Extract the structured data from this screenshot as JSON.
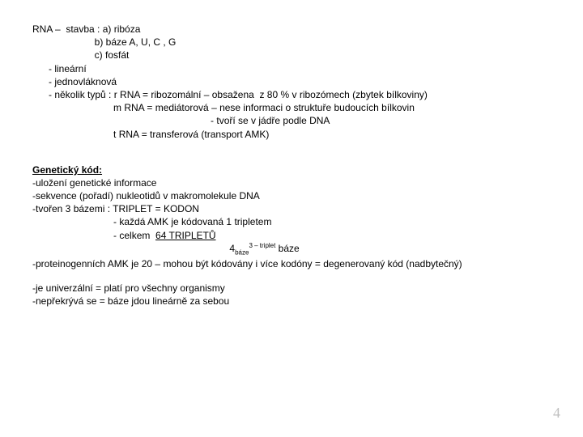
{
  "rna_block": {
    "l1": "RNA –  stavba : a) ribóza",
    "l2": "                       b) báze A, U, C , G",
    "l3": "                       c) fosfát",
    "l4": "      - lineární",
    "l5": "      - jednovláknová",
    "l6": "      - několik typů : r RNA = ribozomální – obsažena  z 80 % v ribozómech (zbytek bílkoviny)",
    "l7": "                              m RNA = mediátorová – nese informaci o struktuře budoucích bílkovin",
    "l8": "                                                                  - tvoří se v jádře podle DNA",
    "l9": "                              t RNA = transferová (transport AMK)"
  },
  "genetic_code": {
    "title": "Genetický kód:",
    "g1": "-uložení genetické informace",
    "g2": "-sekvence (pořadí) nukleotidů v makromolekule DNA",
    "g3": "-tvořen 3 bázemi : TRIPLET = KODON",
    "g4": "                              - každá AMK je kódovaná 1 tripletem",
    "g5_prefix": "                              - celkem  ",
    "g5_underline": "64 TRIPLETŮ",
    "formula_indent": "                                                                         ",
    "formula_base": "4",
    "formula_sub": "báze",
    "formula_sup": "3 – triplet",
    "formula_tail": " báze",
    "g7": "-proteinogenních AMK je 20 – mohou být kódovány i více kodóny = degenerovaný kód (nadbytečný)",
    "g8": "-je univerzální = platí pro všechny organismy",
    "g9": "-nepřekrývá se = báze jdou lineárně za sebou"
  },
  "page_number": "4"
}
